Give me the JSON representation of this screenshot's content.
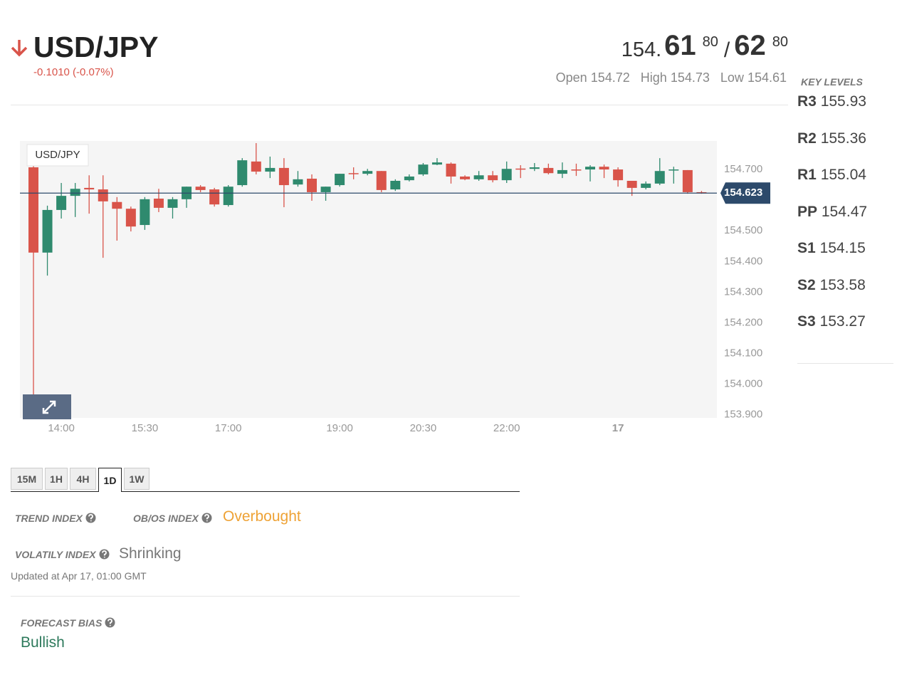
{
  "header": {
    "symbol": "USD/JPY",
    "change": "-0.1010 (-0.07%)",
    "price": {
      "big": "154.",
      "bid": "61",
      "bid_frac": "80",
      "sep": "/",
      "ask": "62",
      "ask_frac": "80"
    },
    "open_label": "Open",
    "open": "154.72",
    "high_label": "High",
    "high": "154.73",
    "low_label": "Low",
    "low": "154.61"
  },
  "key_levels": {
    "title": "KEY LEVELS",
    "levels": [
      {
        "name": "R3",
        "value": "155.93"
      },
      {
        "name": "R2",
        "value": "155.36"
      },
      {
        "name": "R1",
        "value": "155.04"
      },
      {
        "name": "PP",
        "value": "154.47"
      },
      {
        "name": "S1",
        "value": "154.15"
      },
      {
        "name": "S2",
        "value": "153.58"
      },
      {
        "name": "S3",
        "value": "153.27"
      }
    ]
  },
  "chart_data": {
    "type": "candlestick",
    "title": "USD/JPY",
    "categories": [
      null,
      null,
      "14:00",
      null,
      null,
      null,
      null,
      null,
      "15:30",
      null,
      null,
      null,
      null,
      null,
      "17:00",
      null,
      null,
      null,
      null,
      null,
      null,
      null,
      "19:00",
      null,
      null,
      null,
      null,
      null,
      "20:30",
      null,
      null,
      null,
      null,
      null,
      "22:00",
      null,
      null,
      null,
      null,
      null,
      null,
      null,
      "17",
      null,
      null,
      null,
      null,
      null,
      null
    ],
    "open": [
      154.707,
      154.429,
      154.568,
      154.614,
      154.64,
      154.635,
      154.594,
      154.572,
      154.519,
      154.605,
      154.575,
      154.603,
      154.644,
      154.635,
      154.584,
      154.649,
      154.726,
      154.693,
      154.705,
      154.651,
      154.67,
      154.626,
      154.649,
      154.688,
      154.686,
      154.695,
      154.635,
      154.665,
      154.684,
      154.716,
      154.719,
      154.677,
      154.668,
      154.681,
      154.665,
      154.703,
      154.702,
      154.705,
      154.686,
      154.7,
      154.7,
      154.709,
      154.7,
      154.663,
      154.64,
      154.654,
      154.698,
      154.698,
      154.626
    ],
    "high": [
      154.72,
      154.582,
      154.656,
      154.656,
      154.681,
      154.681,
      154.61,
      154.579,
      154.61,
      154.637,
      154.61,
      154.644,
      154.649,
      154.64,
      154.649,
      154.737,
      154.786,
      154.742,
      154.737,
      154.695,
      154.684,
      154.644,
      154.686,
      154.707,
      154.702,
      154.695,
      154.668,
      154.684,
      154.721,
      154.737,
      154.723,
      154.681,
      154.695,
      154.695,
      154.726,
      154.714,
      154.721,
      154.719,
      154.723,
      154.719,
      154.714,
      154.716,
      154.707,
      154.663,
      154.661,
      154.737,
      154.709,
      154.698,
      154.63
    ],
    "low": [
      153.906,
      154.354,
      154.54,
      154.545,
      154.556,
      154.412,
      154.468,
      154.498,
      154.503,
      154.561,
      154.54,
      154.575,
      154.626,
      154.579,
      154.579,
      154.644,
      154.684,
      154.672,
      154.577,
      154.644,
      154.598,
      154.598,
      154.644,
      154.668,
      154.681,
      154.626,
      154.63,
      154.661,
      154.679,
      154.714,
      154.654,
      154.665,
      154.663,
      154.658,
      154.656,
      154.672,
      154.695,
      154.684,
      154.672,
      154.679,
      154.661,
      154.672,
      154.644,
      154.614,
      154.635,
      154.649,
      154.654,
      154.621,
      154.621
    ],
    "close": [
      154.429,
      154.568,
      154.614,
      154.637,
      154.635,
      154.596,
      154.572,
      154.514,
      154.603,
      154.575,
      154.603,
      154.644,
      154.633,
      154.586,
      154.644,
      154.73,
      154.693,
      154.705,
      154.649,
      154.668,
      154.626,
      154.644,
      154.686,
      154.686,
      154.695,
      154.633,
      154.663,
      154.677,
      154.716,
      154.723,
      154.677,
      154.668,
      154.681,
      154.665,
      154.702,
      154.7,
      154.707,
      154.688,
      154.698,
      154.698,
      154.709,
      154.7,
      154.665,
      154.64,
      154.654,
      154.695,
      154.7,
      154.626,
      154.623
    ],
    "up_color": "#2f8a6e",
    "down_color": "#d9544a",
    "ylim": [
      153.89,
      154.793
    ],
    "yticks": [
      {
        "value": 153.9,
        "label": "153.900"
      },
      {
        "value": 154.0,
        "label": "154.000"
      },
      {
        "value": 154.1,
        "label": "154.100"
      },
      {
        "value": 154.2,
        "label": "154.200"
      },
      {
        "value": 154.3,
        "label": "154.300"
      },
      {
        "value": 154.4,
        "label": "154.400"
      },
      {
        "value": 154.5,
        "label": "154.500"
      },
      {
        "value": 154.7,
        "label": "154.700"
      }
    ],
    "last_price": {
      "value": 154.623,
      "label": "154.623"
    },
    "grid": false
  },
  "tabs": [
    "15M",
    "1H",
    "4H",
    "1D",
    "1W"
  ],
  "active_tab": 3,
  "indicators": {
    "trend_label": "TREND INDEX",
    "obos_label": "OB/OS INDEX",
    "obos_value": "Overbought",
    "volatility_label": "VOLATILY INDEX",
    "volatility_value": "Shrinking",
    "updated": "Updated at Apr 17, 01:00 GMT",
    "forecast_label": "FORECAST BIAS",
    "forecast_value": "Bullish"
  }
}
